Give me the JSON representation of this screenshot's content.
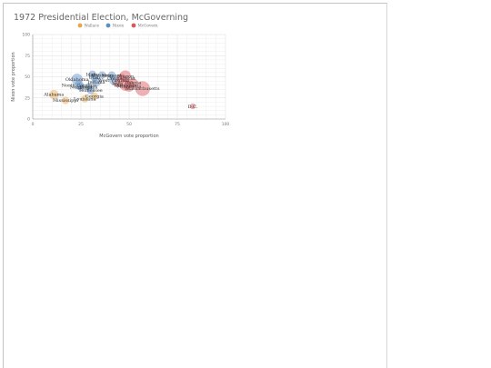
{
  "chart_data": {
    "type": "scatter",
    "title": "1972 Presidential Election, McGoverning",
    "xlabel": "McGovern vote proportion",
    "ylabel": "Nixon vote proportion",
    "xlim": [
      0,
      100
    ],
    "ylim": [
      0,
      100
    ],
    "x_ticks": [
      0,
      25,
      50,
      75,
      100
    ],
    "y_ticks": [
      0,
      25,
      50,
      75,
      100
    ],
    "grid": true,
    "legend_position": "top-center",
    "legend": [
      {
        "name": "Wallace",
        "color": "#e8a64a"
      },
      {
        "name": "Nixon",
        "color": "#5b8fc7"
      },
      {
        "name": "McGovern",
        "color": "#dc5559"
      }
    ],
    "points": [
      {
        "label": "Alabama",
        "x": 11,
        "y": 29,
        "color": "#e8a64a",
        "r": 5
      },
      {
        "label": "Mississippi",
        "x": 17,
        "y": 22,
        "color": "#e8a64a",
        "r": 4
      },
      {
        "label": "Louisiana",
        "x": 27,
        "y": 24,
        "color": "#e8a64a",
        "r": 4
      },
      {
        "label": "Georgia",
        "x": 32,
        "y": 27,
        "color": "#e8a64a",
        "r": 4
      },
      {
        "label": "Oklahoma",
        "x": 23,
        "y": 47,
        "color": "#5b8fc7",
        "r": 6
      },
      {
        "label": "Nebraska",
        "x": 25,
        "y": 38,
        "color": "#5b8fc7",
        "r": 4
      },
      {
        "label": "North Carolina",
        "x": 24,
        "y": 40,
        "color": "#5b8fc7",
        "r": 5
      },
      {
        "label": "Virginia",
        "x": 29,
        "y": 38,
        "color": "#5b8fc7",
        "r": 4
      },
      {
        "label": "Tennessee",
        "x": 30,
        "y": 34,
        "color": "#5b8fc7",
        "r": 4
      },
      {
        "label": "Idaho",
        "x": 31,
        "y": 53,
        "color": "#5b8fc7",
        "r": 4
      },
      {
        "label": "Wyoming",
        "x": 36,
        "y": 52,
        "color": "#5b8fc7",
        "r": 4
      },
      {
        "label": "Utah",
        "x": 32,
        "y": 49,
        "color": "#5b8fc7",
        "r": 4
      },
      {
        "label": "Indiana",
        "x": 33,
        "y": 44,
        "color": "#5b8fc7",
        "r": 5
      },
      {
        "label": "Vermont",
        "x": 41,
        "y": 52,
        "color": "#5b8fc7",
        "r": 4
      },
      {
        "label": "West Virginia",
        "x": 42,
        "y": 46,
        "color": "#5b8fc7",
        "r": 5
      },
      {
        "label": "Connecticut",
        "x": 46,
        "y": 48,
        "color": "#dc5559",
        "r": 5
      },
      {
        "label": "Dakota",
        "x": 52,
        "y": 43,
        "color": "#dc5559",
        "r": 5
      },
      {
        "label": "Iowa",
        "x": 44,
        "y": 42,
        "color": "#dc5559",
        "r": 4
      },
      {
        "label": "Wisconsin",
        "x": 48,
        "y": 40,
        "color": "#dc5559",
        "r": 6
      },
      {
        "label": "Minnesota",
        "x": 50,
        "y": 39,
        "color": "#dc5559",
        "r": 6
      },
      {
        "label": "Massachusetts",
        "x": 57,
        "y": 36,
        "color": "#dc5559",
        "r": 8
      },
      {
        "label": "Oregon",
        "x": 48,
        "y": 51,
        "color": "#dc5559",
        "r": 6
      },
      {
        "label": "D.C.",
        "x": 83,
        "y": 15,
        "color": "#dc5559",
        "r": 3
      }
    ]
  }
}
